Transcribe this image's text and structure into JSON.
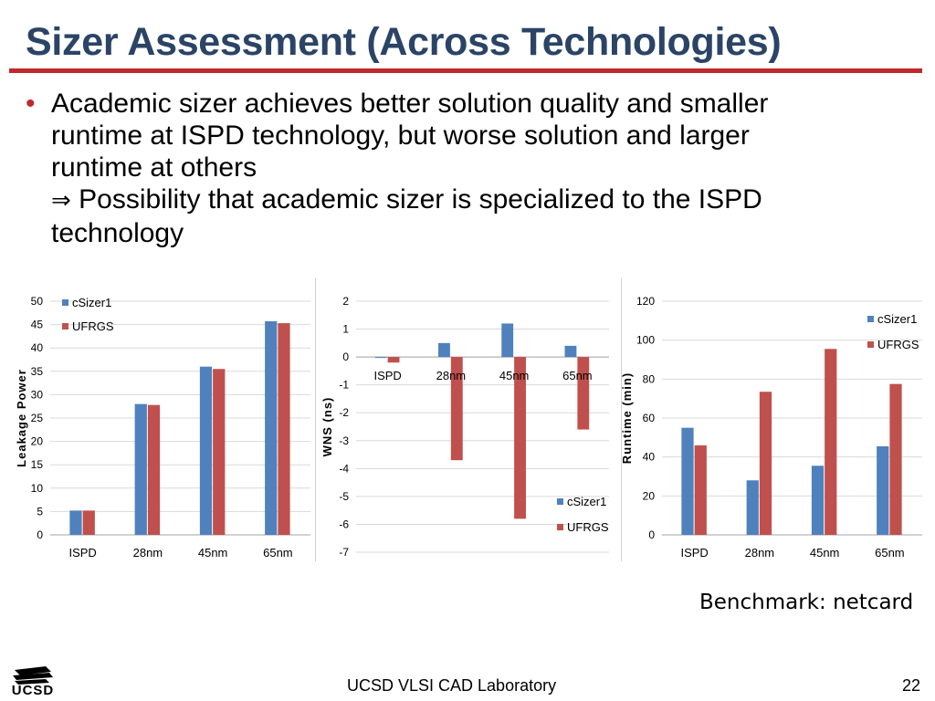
{
  "slide": {
    "title": "Sizer Assessment (Across Technologies)",
    "bullet_lines": [
      "Academic sizer achieves better solution quality and smaller",
      "runtime at ISPD technology, but worse solution and larger",
      "runtime at others"
    ],
    "arrow_symbol": "⇒",
    "arrow_lines": [
      "Possibility that academic sizer is specialized to the ISPD",
      "technology"
    ],
    "benchmark": "Benchmark: netcard",
    "footer": "UCSD VLSI CAD Laboratory",
    "page_number": "22",
    "logo_text": "UCSD"
  },
  "colors": {
    "title": "#2b4466",
    "accent": "#c0282d",
    "csizer": "#4f81bd",
    "ufrgs": "#c0504d"
  },
  "chart_data": [
    {
      "type": "bar",
      "categories": [
        "ISPD",
        "28nm",
        "45nm",
        "65nm"
      ],
      "series": [
        {
          "name": "cSizer1",
          "values": [
            5.2,
            28.0,
            36.0,
            45.7
          ]
        },
        {
          "name": "UFRGS",
          "values": [
            5.2,
            27.8,
            35.5,
            45.3
          ]
        }
      ],
      "title": "",
      "xlabel": "",
      "ylabel": "Leakage Power",
      "ylim": [
        0,
        50
      ],
      "yticks": [
        0,
        5,
        10,
        15,
        20,
        25,
        30,
        35,
        40,
        45,
        50
      ],
      "legend": "top-left",
      "grid": true
    },
    {
      "type": "bar",
      "categories": [
        "ISPD",
        "28nm",
        "45nm",
        "65nm"
      ],
      "series": [
        {
          "name": "cSizer1",
          "values": [
            0.0,
            0.5,
            1.2,
            0.4
          ]
        },
        {
          "name": "UFRGS",
          "values": [
            -0.2,
            -3.7,
            -5.8,
            -2.6
          ]
        }
      ],
      "title": "",
      "xlabel": "",
      "ylabel": "WNS (ns)",
      "ylim": [
        -7,
        2
      ],
      "yticks": [
        -7,
        -6,
        -5,
        -4,
        -3,
        -2,
        -1,
        0,
        1,
        2
      ],
      "legend": "bottom-right",
      "grid": true
    },
    {
      "type": "bar",
      "categories": [
        "ISPD",
        "28nm",
        "45nm",
        "65nm"
      ],
      "series": [
        {
          "name": "cSizer1",
          "values": [
            55,
            28,
            35.5,
            45.5
          ]
        },
        {
          "name": "UFRGS",
          "values": [
            46,
            73.5,
            95.5,
            77.5
          ]
        }
      ],
      "title": "",
      "xlabel": "",
      "ylabel": "Runtime (min)",
      "ylim": [
        0,
        120
      ],
      "yticks": [
        0,
        20,
        40,
        60,
        80,
        100,
        120
      ],
      "legend": "right",
      "grid": true
    }
  ]
}
